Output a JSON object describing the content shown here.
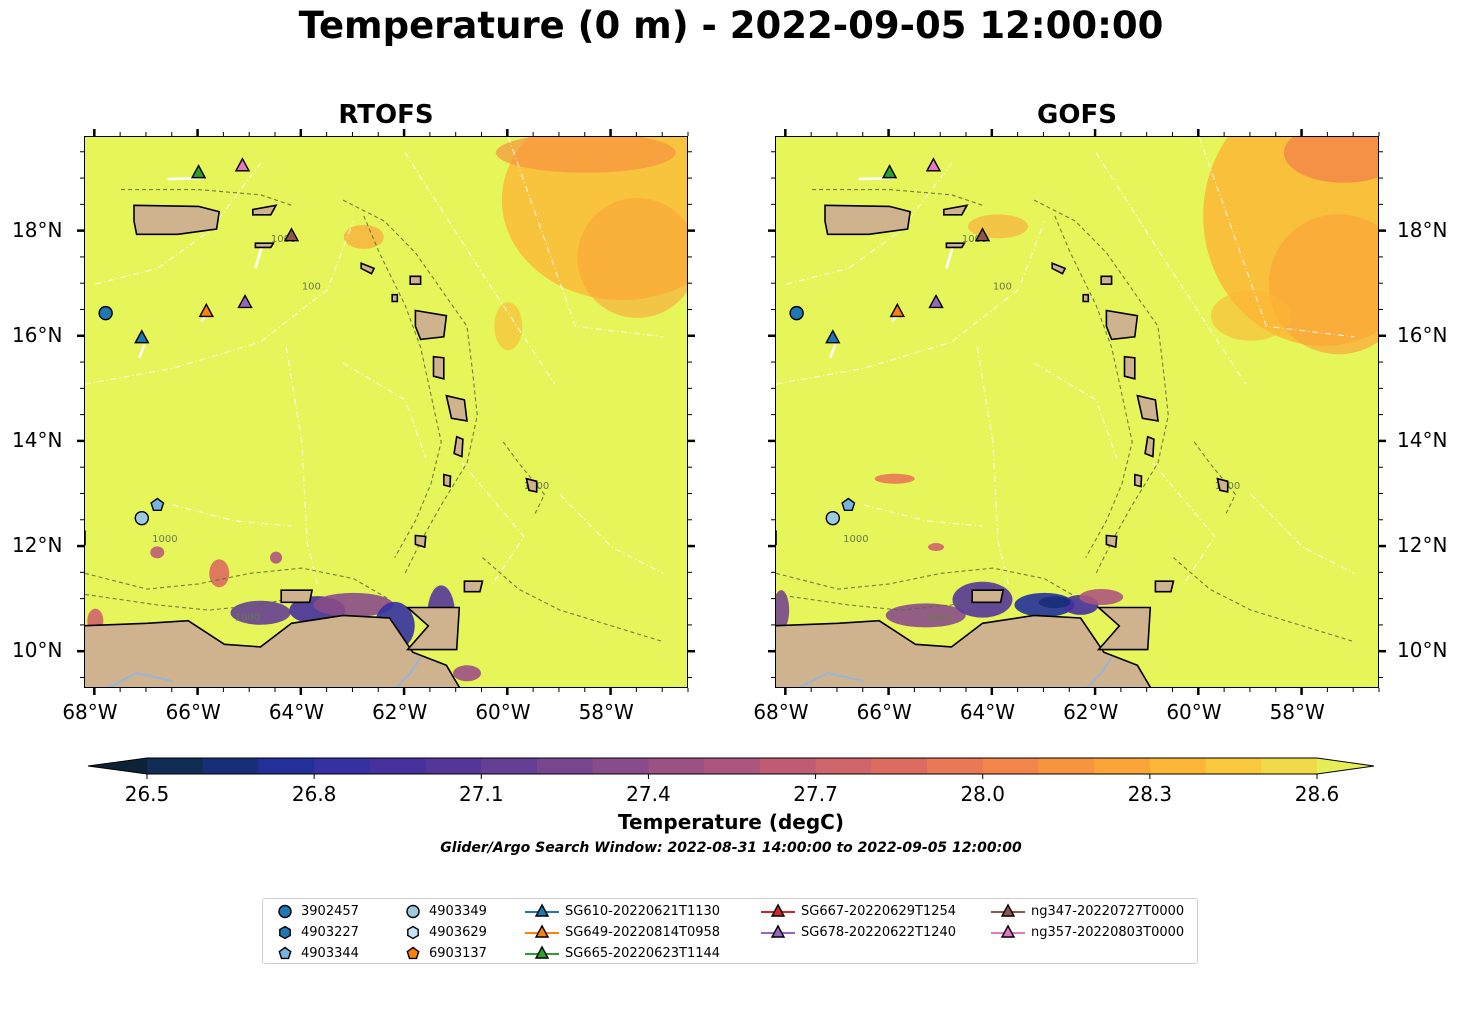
{
  "title": "Temperature (0 m) - 2022-09-05 12:00:00",
  "panels": [
    {
      "name": "RTOFS"
    },
    {
      "name": "GOFS"
    }
  ],
  "axes": {
    "lon_labels": [
      "68°W",
      "66°W",
      "64°W",
      "62°W",
      "60°W",
      "58°W"
    ],
    "lat_labels": [
      "18°N",
      "16°N",
      "14°N",
      "12°N",
      "10°N"
    ],
    "lon_values": [
      -68,
      -66,
      -64,
      -62,
      -60,
      -58
    ],
    "lat_values": [
      18,
      16,
      14,
      12,
      10
    ],
    "lon_range": [
      -68.2,
      -56.5
    ],
    "lat_range": [
      9.3,
      19.8
    ]
  },
  "contour_labels": [
    "100",
    "1000"
  ],
  "colorbar": {
    "label": "Temperature (degC)",
    "ticks": [
      "26.5",
      "26.8",
      "27.1",
      "27.4",
      "27.7",
      "28.0",
      "28.3",
      "28.6"
    ],
    "range": [
      26.5,
      28.6
    ],
    "extend": "both",
    "colormap": "thermal",
    "colors": [
      "#0d2236",
      "#112d56",
      "#172f79",
      "#23309a",
      "#3531a3",
      "#45309e",
      "#553799",
      "#653f94",
      "#77468f",
      "#894c8a",
      "#9b5183",
      "#ad567d",
      "#bf5c74",
      "#cf646b",
      "#dd6c60",
      "#e97855",
      "#f2854a",
      "#f7943f",
      "#fba539",
      "#fcb636",
      "#f9c83d",
      "#f1da47",
      "#e6ee57"
    ]
  },
  "search_window": "Glider/Argo Search Window: 2022-08-31 14:00:00 to 2022-09-05 12:00:00",
  "land_color": "#cfb38e",
  "ocean_warm_color": "#e6f55a",
  "observations": [
    {
      "id": "3902457",
      "kind": "argo",
      "marker": "circle",
      "color": "#1f77b4",
      "lon": -67.8,
      "lat": 16.45
    },
    {
      "id": "4903227",
      "kind": "argo",
      "marker": "hexagon",
      "color": "#1f77b4",
      "lon": null,
      "lat": null
    },
    {
      "id": "4903344",
      "kind": "argo",
      "marker": "pentagon",
      "color": "#79b3e0",
      "lon": -66.8,
      "lat": 12.8
    },
    {
      "id": "4903349",
      "kind": "argo",
      "marker": "circle",
      "color": "#9ecae1",
      "lon": -67.1,
      "lat": 12.55
    },
    {
      "id": "4903629",
      "kind": "argo",
      "marker": "hexagon",
      "color": "#c6e4f5",
      "lon": null,
      "lat": null
    },
    {
      "id": "6903137",
      "kind": "argo",
      "marker": "pentagon",
      "color": "#ff7f0e",
      "lon": null,
      "lat": null
    },
    {
      "id": "SG610-20220621T1130",
      "kind": "glider",
      "marker": "triangle",
      "color": "#1f77b4",
      "lon": -67.1,
      "lat": 15.98
    },
    {
      "id": "SG649-20220814T0958",
      "kind": "glider",
      "marker": "triangle",
      "color": "#ff7f0e",
      "lon": -65.85,
      "lat": 16.48
    },
    {
      "id": "SG665-20220623T1144",
      "kind": "glider",
      "marker": "triangle",
      "color": "#2ca02c",
      "lon": -66.0,
      "lat": 19.12
    },
    {
      "id": "SG667-20220629T1254",
      "kind": "glider",
      "marker": "triangle",
      "color": "#d62728",
      "lon": null,
      "lat": null
    },
    {
      "id": "SG678-20220622T1240",
      "kind": "glider",
      "marker": "triangle",
      "color": "#9467bd",
      "lon": -65.1,
      "lat": 16.65
    },
    {
      "id": "ng347-20220727T0000",
      "kind": "glider",
      "marker": "triangle",
      "color": "#8c564b",
      "lon": -64.2,
      "lat": 17.92
    },
    {
      "id": "ng357-20220803T0000",
      "kind": "glider",
      "marker": "triangle",
      "color": "#e377c2",
      "lon": -65.15,
      "lat": 19.25
    }
  ]
}
